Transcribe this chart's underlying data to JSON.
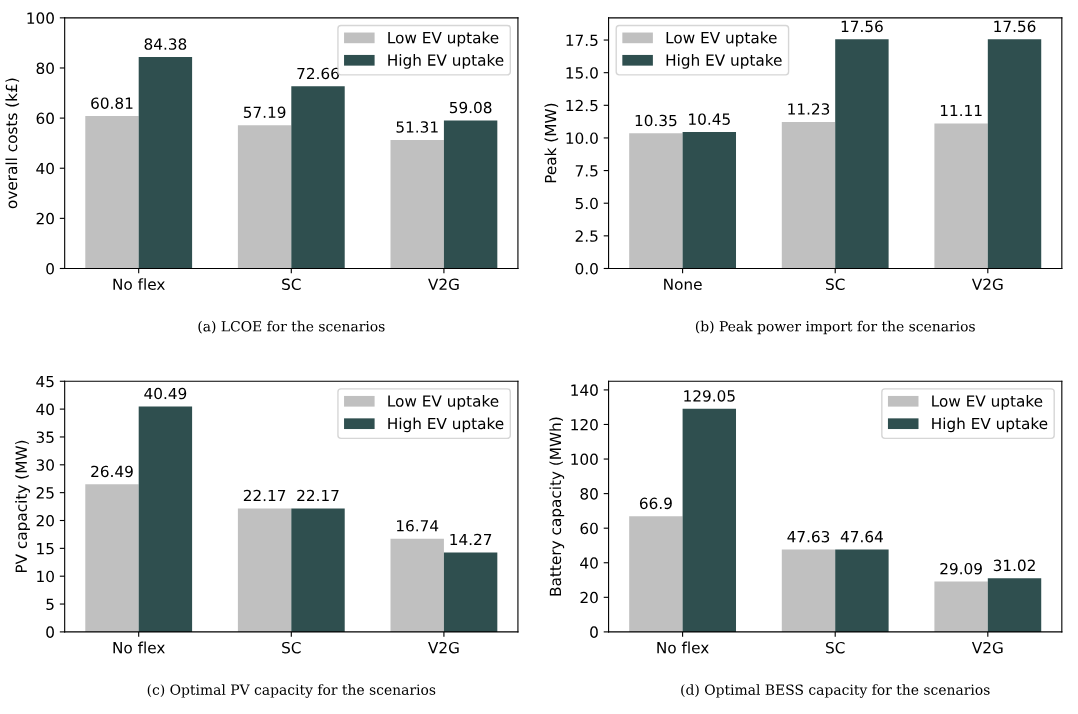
{
  "chart_data": [
    {
      "type": "bar",
      "xlabel": "(a) LCOE for the scenarios",
      "ylabel": "overall costs (k£)",
      "categories": [
        "No flex",
        "SC",
        "V2G"
      ],
      "series": [
        {
          "name": "Low EV uptake",
          "color": "#c0c0c0",
          "values": [
            60.81,
            57.19,
            51.31
          ]
        },
        {
          "name": "High EV uptake",
          "color": "#2f4f4f",
          "values": [
            84.38,
            72.66,
            59.08
          ]
        }
      ],
      "ylim": [
        0,
        100
      ],
      "yticks": [
        0,
        20,
        40,
        60,
        80,
        100
      ],
      "data_labels": true,
      "legend": "top right",
      "grid": false
    },
    {
      "type": "bar",
      "xlabel": "(b) Peak power import for the scenarios",
      "ylabel": "Peak (MW)",
      "categories": [
        "None",
        "SC",
        "V2G"
      ],
      "series": [
        {
          "name": "Low EV uptake",
          "color": "#c0c0c0",
          "values": [
            10.35,
            11.23,
            11.11
          ]
        },
        {
          "name": "High EV uptake",
          "color": "#2f4f4f",
          "values": [
            10.45,
            17.56,
            17.56
          ]
        }
      ],
      "ylim": [
        0,
        19.2
      ],
      "yticks": [
        {
          "value": 0,
          "label": "0.0"
        },
        2.5,
        {
          "value": 5,
          "label": "5.0"
        },
        7.5,
        {
          "value": 10,
          "label": "10.0"
        },
        12.5,
        {
          "value": 15,
          "label": "15.0"
        },
        17.5
      ],
      "data_labels": true,
      "legend": "top left",
      "grid": false
    },
    {
      "type": "bar",
      "xlabel": "(c) Optimal PV capacity for the scenarios",
      "ylabel": "PV capacity (MW)",
      "categories": [
        "No flex",
        "SC",
        "V2G"
      ],
      "series": [
        {
          "name": "Low EV uptake",
          "color": "#c0c0c0",
          "values": [
            26.49,
            22.17,
            16.74
          ]
        },
        {
          "name": "High EV uptake",
          "color": "#2f4f4f",
          "values": [
            40.49,
            22.17,
            14.27
          ]
        }
      ],
      "ylim": [
        0,
        45
      ],
      "yticks": [
        0,
        5,
        10,
        15,
        20,
        25,
        30,
        35,
        40,
        45
      ],
      "data_labels": true,
      "legend": "top right",
      "grid": false
    },
    {
      "type": "bar",
      "xlabel": "(d) Optimal BESS capacity for the scenarios",
      "ylabel": "Battery capacity (MWh)",
      "categories": [
        "No flex",
        "SC",
        "V2G"
      ],
      "series": [
        {
          "name": "Low EV uptake",
          "color": "#c0c0c0",
          "values": [
            66.9,
            47.63,
            29.09
          ]
        },
        {
          "name": "High EV uptake",
          "color": "#2f4f4f",
          "values": [
            129.05,
            47.64,
            31.02
          ]
        }
      ],
      "ylim": [
        0,
        145
      ],
      "yticks": [
        0,
        20,
        40,
        60,
        80,
        100,
        120,
        140
      ],
      "data_labels": true,
      "legend": "top right",
      "grid": false
    }
  ]
}
